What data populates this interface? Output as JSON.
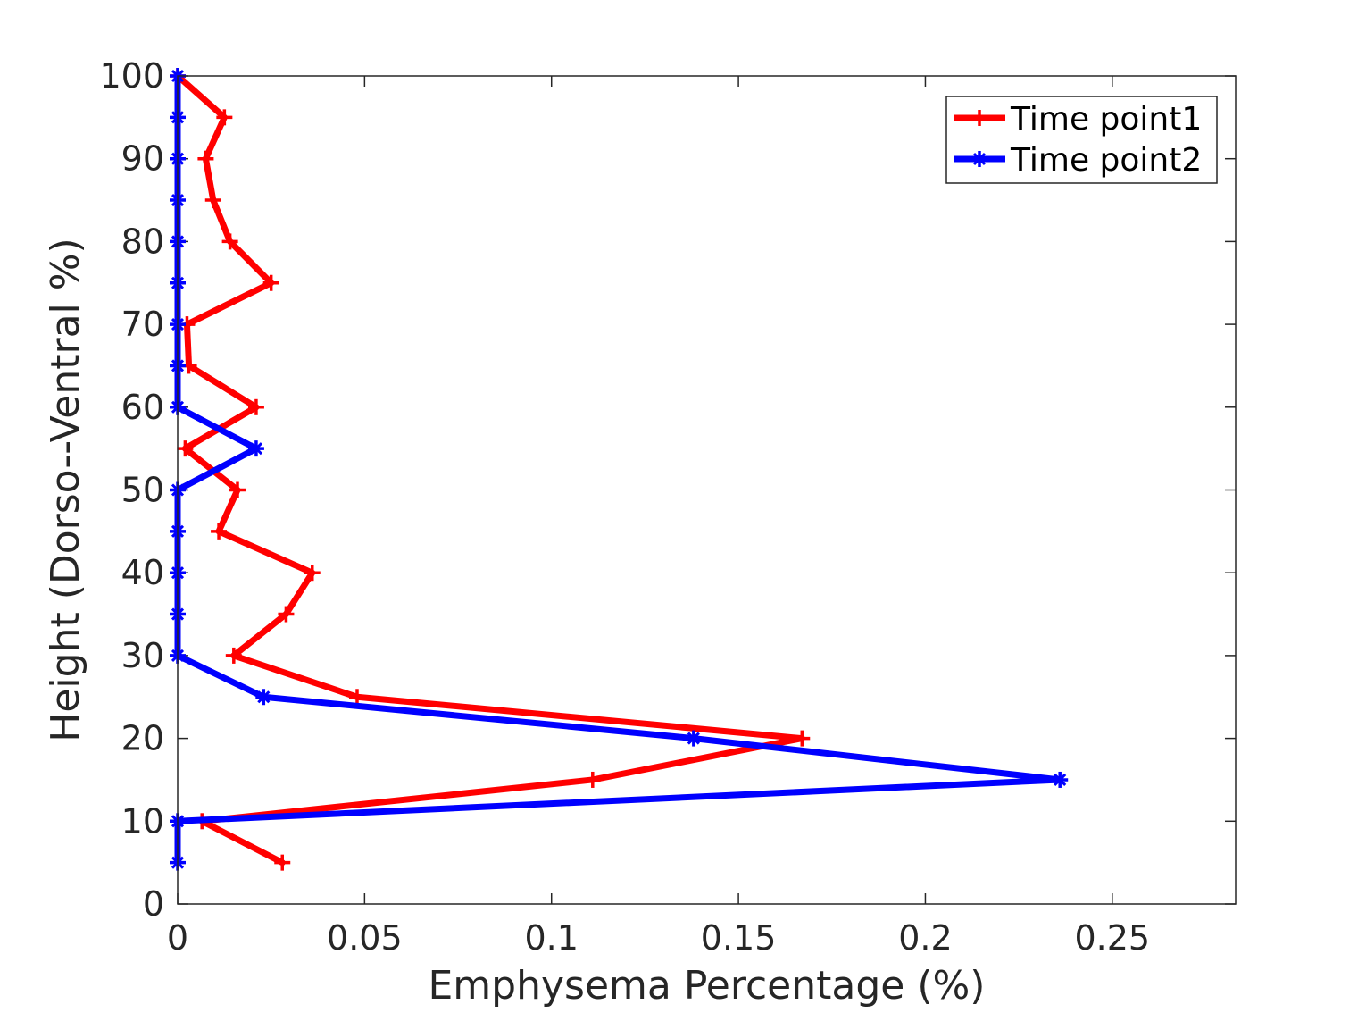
{
  "chart_data": {
    "type": "line",
    "xlabel": "Emphysema Percentage (%)",
    "ylabel": "Height (Dorso--Ventral %)",
    "xlim": [
      0,
      0.283
    ],
    "ylim": [
      0,
      100
    ],
    "x_ticks": [
      0,
      0.05,
      0.1,
      0.15,
      0.2,
      0.25
    ],
    "x_tick_labels": [
      "0",
      "0.05",
      "0.1",
      "0.15",
      "0.2",
      "0.25"
    ],
    "y_ticks": [
      0,
      10,
      20,
      30,
      40,
      50,
      60,
      70,
      80,
      90,
      100
    ],
    "y_tick_labels": [
      "0",
      "10",
      "20",
      "30",
      "40",
      "50",
      "60",
      "70",
      "80",
      "90",
      "100"
    ],
    "grid": false,
    "legend_position": "top-right",
    "series": [
      {
        "name": "Time point1",
        "color": "#ff0000",
        "marker": "plus",
        "points": [
          {
            "x": 0.028,
            "y": 5
          },
          {
            "x": 0.0065,
            "y": 10
          },
          {
            "x": 0.111,
            "y": 15
          },
          {
            "x": 0.167,
            "y": 20
          },
          {
            "x": 0.048,
            "y": 25
          },
          {
            "x": 0.015,
            "y": 30
          },
          {
            "x": 0.029,
            "y": 35
          },
          {
            "x": 0.036,
            "y": 40
          },
          {
            "x": 0.011,
            "y": 45
          },
          {
            "x": 0.016,
            "y": 50
          },
          {
            "x": 0.002,
            "y": 55
          },
          {
            "x": 0.021,
            "y": 60
          },
          {
            "x": 0.003,
            "y": 65
          },
          {
            "x": 0.0025,
            "y": 70
          },
          {
            "x": 0.025,
            "y": 75
          },
          {
            "x": 0.014,
            "y": 80
          },
          {
            "x": 0.0095,
            "y": 85
          },
          {
            "x": 0.0075,
            "y": 90
          },
          {
            "x": 0.0125,
            "y": 95
          },
          {
            "x": 0.0,
            "y": 100
          }
        ]
      },
      {
        "name": "Time point2",
        "color": "#0000ff",
        "marker": "star",
        "points": [
          {
            "x": 0,
            "y": 5
          },
          {
            "x": 0,
            "y": 10
          },
          {
            "x": 0.236,
            "y": 15
          },
          {
            "x": 0.138,
            "y": 20
          },
          {
            "x": 0.023,
            "y": 25
          },
          {
            "x": 0,
            "y": 30
          },
          {
            "x": 0,
            "y": 35
          },
          {
            "x": 0,
            "y": 40
          },
          {
            "x": 0,
            "y": 45
          },
          {
            "x": 0,
            "y": 50
          },
          {
            "x": 0.021,
            "y": 55
          },
          {
            "x": 0,
            "y": 60
          },
          {
            "x": 0,
            "y": 65
          },
          {
            "x": 0,
            "y": 70
          },
          {
            "x": 0,
            "y": 75
          },
          {
            "x": 0,
            "y": 80
          },
          {
            "x": 0,
            "y": 85
          },
          {
            "x": 0,
            "y": 90
          },
          {
            "x": 0,
            "y": 95
          },
          {
            "x": 0,
            "y": 100
          }
        ]
      }
    ]
  }
}
